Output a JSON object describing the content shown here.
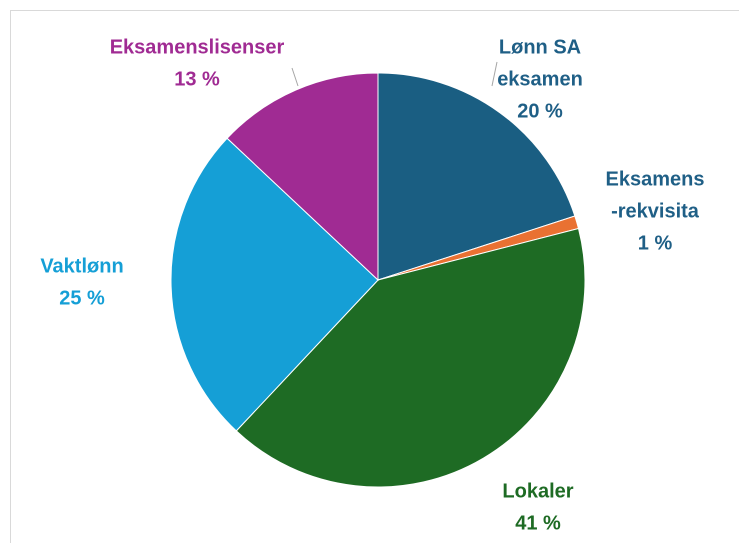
{
  "chart_data": {
    "type": "pie",
    "categories": [
      [
        "Lønn SA",
        "eksamen"
      ],
      [
        "Eksamens",
        "-rekvisita"
      ],
      [
        "Lokaler"
      ],
      [
        "Vaktlønn"
      ],
      [
        "Eksamenslisenser"
      ]
    ],
    "values": [
      20,
      1,
      41,
      25,
      13
    ],
    "value_labels": [
      "20 %",
      "1 %",
      "41 %",
      "25 %",
      "13 %"
    ],
    "colors": [
      "#1a5e82",
      "#e97132",
      "#1e6b24",
      "#159fd6",
      "#a02b93"
    ],
    "label_colors": [
      "#1f5f86",
      "#1f5f86",
      "#1e6b24",
      "#159fd6",
      "#a02b93"
    ]
  }
}
